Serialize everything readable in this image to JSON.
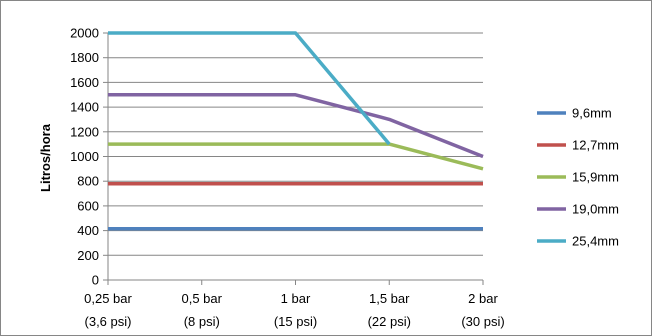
{
  "chart_data": {
    "type": "line",
    "title": "",
    "xlabel": "",
    "ylabel": "Litros/hora",
    "ylim": [
      0,
      2000
    ],
    "yticks": [
      0,
      200,
      400,
      600,
      800,
      1000,
      1200,
      1400,
      1600,
      1800,
      2000
    ],
    "grid": true,
    "legend_position": "right",
    "categories": [
      {
        "line1": "0,25 bar",
        "line2": "(3,6 psi)"
      },
      {
        "line1": "0,5 bar",
        "line2": "(8 psi)"
      },
      {
        "line1": "1 bar",
        "line2": "(15 psi)"
      },
      {
        "line1": "1,5 bar",
        "line2": "(22 psi)"
      },
      {
        "line1": "2 bar",
        "line2": "(30 psi)"
      }
    ],
    "series": [
      {
        "name": "9,6mm",
        "color": "#4F81BD",
        "values": [
          415,
          415,
          415,
          415,
          415
        ]
      },
      {
        "name": "12,7mm",
        "color": "#C0504D",
        "values": [
          780,
          780,
          780,
          780,
          780
        ]
      },
      {
        "name": "15,9mm",
        "color": "#9BBB59",
        "values": [
          1100,
          1100,
          1100,
          1100,
          900
        ]
      },
      {
        "name": "19,0mm",
        "color": "#8064A2",
        "values": [
          1500,
          1500,
          1500,
          1300,
          1000
        ]
      },
      {
        "name": "25,4mm",
        "color": "#4BACC6",
        "values": [
          2000,
          2000,
          2000,
          1100,
          null
        ]
      }
    ]
  }
}
